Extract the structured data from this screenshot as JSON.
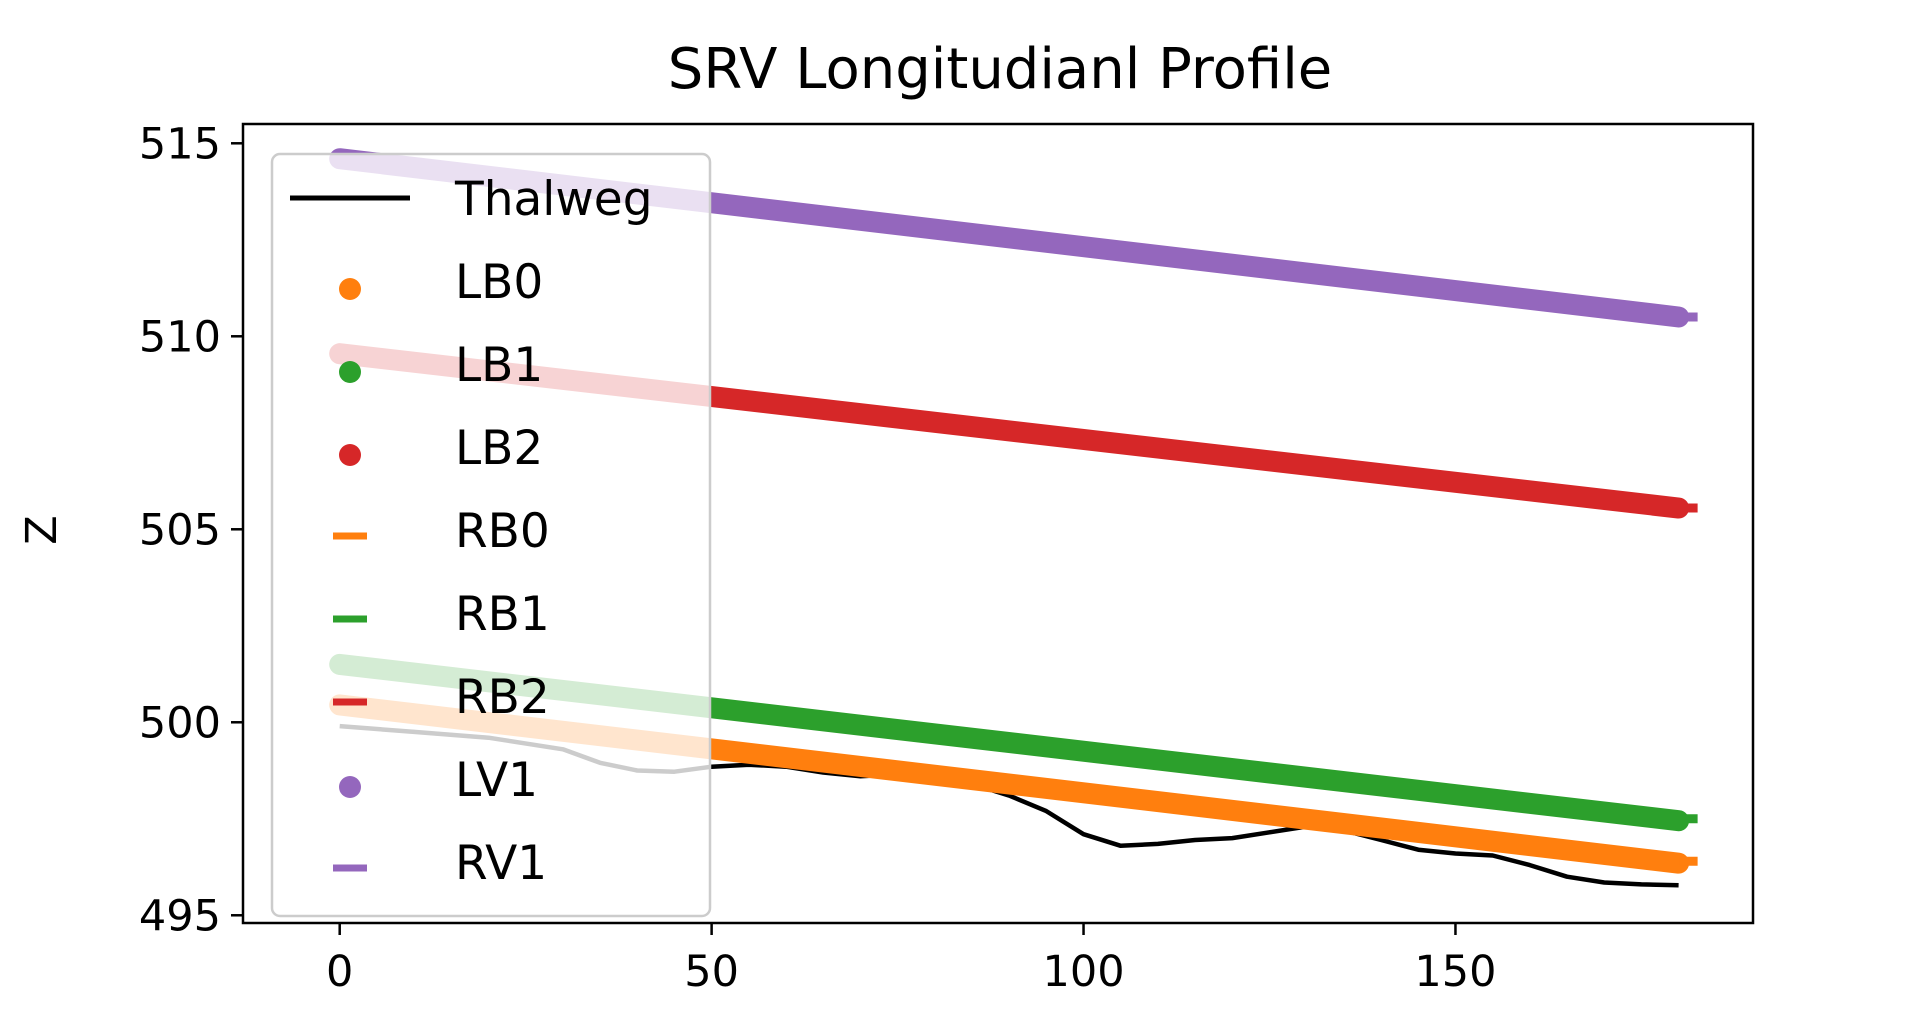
{
  "chart_data": {
    "type": "line",
    "title": "SRV Longitudianl Profile",
    "xlabel": "",
    "ylabel": "Z",
    "xlim": [
      -13,
      190
    ],
    "ylim": [
      494.8,
      515.5
    ],
    "x_ticks": [
      0,
      50,
      100,
      150
    ],
    "y_ticks": [
      495,
      500,
      505,
      510,
      515
    ],
    "x_tick_labels": [
      "0",
      "50",
      "100",
      "150"
    ],
    "y_tick_labels": [
      "495",
      "500",
      "505",
      "510",
      "515"
    ],
    "grid": false,
    "legend_placement": "upper-left",
    "series": [
      {
        "name": "Thalweg",
        "marker": "line",
        "color": "#000000",
        "x": [
          0,
          10,
          20,
          30,
          35,
          40,
          45,
          50,
          55,
          60,
          65,
          70,
          75,
          80,
          85,
          90,
          95,
          100,
          105,
          110,
          115,
          120,
          125,
          130,
          135,
          140,
          145,
          150,
          155,
          160,
          165,
          170,
          175,
          180
        ],
        "y": [
          499.9,
          499.75,
          499.6,
          499.3,
          498.95,
          498.75,
          498.72,
          498.85,
          498.9,
          498.85,
          498.7,
          498.6,
          498.65,
          498.6,
          498.4,
          498.1,
          497.7,
          497.1,
          496.8,
          496.85,
          496.95,
          497.0,
          497.15,
          497.3,
          497.2,
          496.95,
          496.7,
          496.6,
          496.55,
          496.3,
          496.0,
          495.85,
          495.8,
          495.78
        ]
      },
      {
        "name": "LB0",
        "marker": "dot",
        "color": "#ff7f0e",
        "x": [
          0,
          180
        ],
        "y": [
          500.45,
          496.35
        ]
      },
      {
        "name": "LB1",
        "marker": "dot",
        "color": "#2ca02c",
        "x": [
          0,
          180
        ],
        "y": [
          501.5,
          497.45
        ]
      },
      {
        "name": "LB2",
        "marker": "dot",
        "color": "#d62728",
        "x": [
          0,
          180
        ],
        "y": [
          509.55,
          505.55
        ]
      },
      {
        "name": "RB0",
        "marker": "dash",
        "color": "#ff7f0e",
        "x": [
          180
        ],
        "y": [
          496.4
        ]
      },
      {
        "name": "RB1",
        "marker": "dash",
        "color": "#2ca02c",
        "x": [
          180
        ],
        "y": [
          497.5
        ]
      },
      {
        "name": "RB2",
        "marker": "dash",
        "color": "#d62728",
        "x": [
          180
        ],
        "y": [
          505.55
        ]
      },
      {
        "name": "LV1",
        "marker": "dot",
        "color": "#9467bd",
        "x": [
          0,
          180
        ],
        "y": [
          514.6,
          510.5
        ]
      },
      {
        "name": "RV1",
        "marker": "dash",
        "color": "#9467bd",
        "x": [
          180
        ],
        "y": [
          510.5
        ]
      }
    ]
  }
}
